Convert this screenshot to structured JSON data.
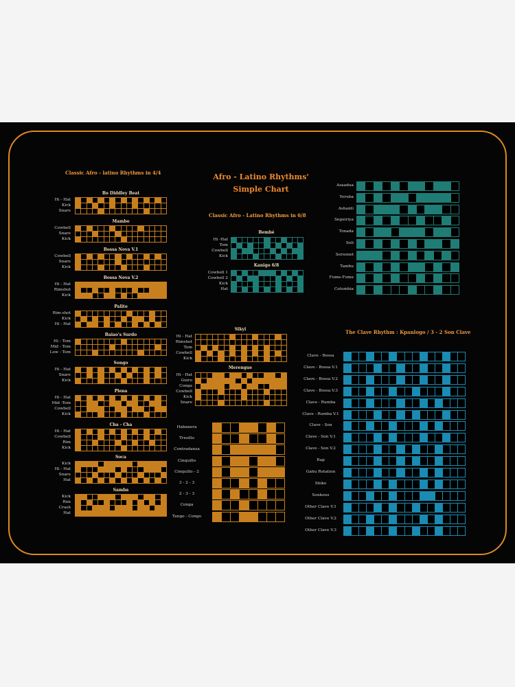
{
  "colors": {
    "orange": "#c8801e",
    "teal": "#1f7d76",
    "blue": "#1a8bb2",
    "border": "#e08a22",
    "title": "#ef8a2d"
  },
  "title": {
    "line1": "Afro - Latino Rhythms'",
    "line2": "Simple Chart"
  },
  "section_44": {
    "heading": "Classic Afro - latino Rhythms in 4/4",
    "grids": [
      {
        "name": "Bo Diddley Beat",
        "rows": [
          "Hi - Hat",
          "Kick",
          "Snare"
        ],
        "patterns": [
          "1010101010101010",
          "1001001000100000",
          "0000100000001000"
        ]
      },
      {
        "name": "Mambo",
        "rows": [
          "Cowbell",
          "Snare",
          "Kick"
        ],
        "patterns": [
          "1010001000010000",
          "0001000100000000",
          "1000000010000000"
        ]
      },
      {
        "name": "Bossa Nova V.1",
        "rows": [
          "Cowbell",
          "Snare",
          "Kick"
        ],
        "patterns": [
          "1010100101001010",
          "1000000100000000",
          "1000100010001000"
        ]
      },
      {
        "name": "Bossa Nova V.2",
        "rows": [
          "Hi - Hat",
          "Rimshot",
          "Kick"
        ],
        "patterns": [
          "1111111111111111",
          "1001001000100111",
          "1110011010011111"
        ]
      },
      {
        "name": "Palito",
        "rows": [
          "Rim-shot",
          "Kick",
          "Hi - Hat"
        ],
        "patterns": [
          "1000000001000100",
          "0101010010110100",
          "1011010100101010"
        ]
      },
      {
        "name": "Baiao's Surdo",
        "rows": [
          "Hi - Tom",
          "Mid - Tom",
          "Low - Tom"
        ],
        "patterns": [
          "1000000010000000",
          "0000001000000010",
          "0001000000010000"
        ]
      },
      {
        "name": "Songo",
        "rows": [
          "Hi - Hat",
          "Snare",
          "Kick"
        ],
        "patterns": [
          "1010101010101010",
          "0010100101001010",
          "1000100010001000"
        ]
      },
      {
        "name": "Plena",
        "rows": [
          "Hi - Hat",
          "Mid -Tom",
          "Cowbell",
          "Kick"
        ],
        "patterns": [
          "1010101010101010",
          "0011001101100110",
          "0011100110110011",
          "1000100010001000"
        ]
      },
      {
        "name": "Cha - Cha",
        "rows": [
          "Hi - Hat",
          "Cowbell",
          "Rim",
          "Kick"
        ],
        "patterns": [
          "1010101010101010",
          "1000100010001000",
          "1001000100100100",
          "1000000010000000"
        ]
      },
      {
        "name": "Soca",
        "rows": [
          "Kick",
          "Hi - Hat",
          "Snare",
          "Hat"
        ],
        "patterns": [
          "1111011111011111",
          "1000111010001110",
          "0001000100010001",
          "1010101010101010"
        ]
      },
      {
        "name": "Samba",
        "rows": [
          "Kick",
          "Rim",
          "Crash",
          "Hat"
        ],
        "patterns": [
          "1100111011101101",
          "1010010001010101",
          "1001110111011011",
          "1111111111111111"
        ]
      }
    ]
  },
  "section_68": {
    "heading": "Classic Afro - Latino Rhythms in 6/8",
    "grids": [
      {
        "name": "Bembé",
        "rows": [
          "Hi -Hat",
          "Tom",
          "Cowbell",
          "Kick"
        ],
        "patterns": [
          "1000001001000",
          "0101001010101",
          "1011000101011",
          "1000100010001"
        ]
      },
      {
        "name": "Kanigo 6/8",
        "rows": [
          "Cowbell 1",
          "Cowbell 2",
          "Kick",
          "Hat"
        ],
        "patterns": [
          "1010011101010",
          "0101100010101",
          "1000100010001",
          "1010101010101"
        ]
      },
      {
        "name": "Sikyi",
        "rows": [
          "Hi - Hat",
          "Rimshot",
          "Tom",
          "Cowbell",
          "Kick"
        ],
        "patterns": [
          "0000001000100010",
          "0000000000000000",
          "0101001010101000",
          "1010101010101010",
          "1000100010001000"
        ]
      },
      {
        "name": "Merengue",
        "rows": [
          "Hi - Hat",
          "Guiro",
          "Conga",
          "Cowbell",
          "Kick",
          "Snare"
        ],
        "patterns": [
          "0001101101001101",
          "1011111010111111",
          "0111101101100111",
          "1000100010001000",
          "1000000010000000",
          "0000100000001000"
        ]
      }
    ]
  },
  "short_rhythms": [
    {
      "name": "Habanera",
      "pattern": "10011010"
    },
    {
      "name": "Tresillo",
      "pattern": "10010010"
    },
    {
      "name": "Contradanza",
      "pattern": "10111110"
    },
    {
      "name": "Cinquillo",
      "pattern": "10110110"
    },
    {
      "name": "Cinquillo - 2",
      "pattern": "10110111"
    },
    {
      "name": "3 - 2 - 3",
      "pattern": "10010100"
    },
    {
      "name": "2 - 3 - 3",
      "pattern": "10100100"
    },
    {
      "name": "Conga",
      "pattern": "10010000"
    },
    {
      "name": "Tango - Congo",
      "pattern": "10011000"
    }
  ],
  "bell_patterns": [
    {
      "name": "Asaadua",
      "pattern": "101010110110"
    },
    {
      "name": "Yoruba",
      "pattern": "101011011110"
    },
    {
      "name": "Ashanti",
      "pattern": "101110101100"
    },
    {
      "name": "Seguiriya",
      "pattern": "101010010010"
    },
    {
      "name": "Tonada",
      "pattern": "101101110110"
    },
    {
      "name": "Soli",
      "pattern": "101010101101"
    },
    {
      "name": "Sorsonet",
      "pattern": "111010101010"
    },
    {
      "name": "Tambu",
      "pattern": "101010110101"
    },
    {
      "name": "Fume-Fume",
      "pattern": "101010010100"
    },
    {
      "name": "Columbia",
      "pattern": "101000100100"
    }
  ],
  "clave": {
    "heading": "The Clave Rhythm : Kpanlogo / 3 - 2 Son Clave",
    "rows": [
      {
        "name": "Clave - Bossa",
        "pattern": "1001001000100100"
      },
      {
        "name": "Clave - Bossa V.1",
        "pattern": "1000100100100100"
      },
      {
        "name": "Clave - Bossa V.2",
        "pattern": "1001000100100100"
      },
      {
        "name": "Clave - Bossa V.3",
        "pattern": "1001001001000100"
      },
      {
        "name": "Clave - Rumba",
        "pattern": "1001000100101000"
      },
      {
        "name": "Clave - Rumba V.1",
        "pattern": "1000100101000100"
      },
      {
        "name": "Clave - Son",
        "pattern": "1001001000101000"
      },
      {
        "name": "Clave - Son V.1",
        "pattern": "1000101000100100"
      },
      {
        "name": "Clave - Son V.2",
        "pattern": "1000100101001000"
      },
      {
        "name": "Rap",
        "pattern": "1000100101001000"
      },
      {
        "name": "Gahu Rotation",
        "pattern": "1000100100101000"
      },
      {
        "name": "Shiko",
        "pattern": "1000101000101000"
      },
      {
        "name": "Soukous",
        "pattern": "1001001000110000"
      },
      {
        "name": "Other Clave V.1",
        "pattern": "1000101001001000"
      },
      {
        "name": "Other Clave V.2",
        "pattern": "1001001000101000"
      },
      {
        "name": "Other Clave V.3",
        "pattern": "1001001001001000"
      }
    ]
  }
}
